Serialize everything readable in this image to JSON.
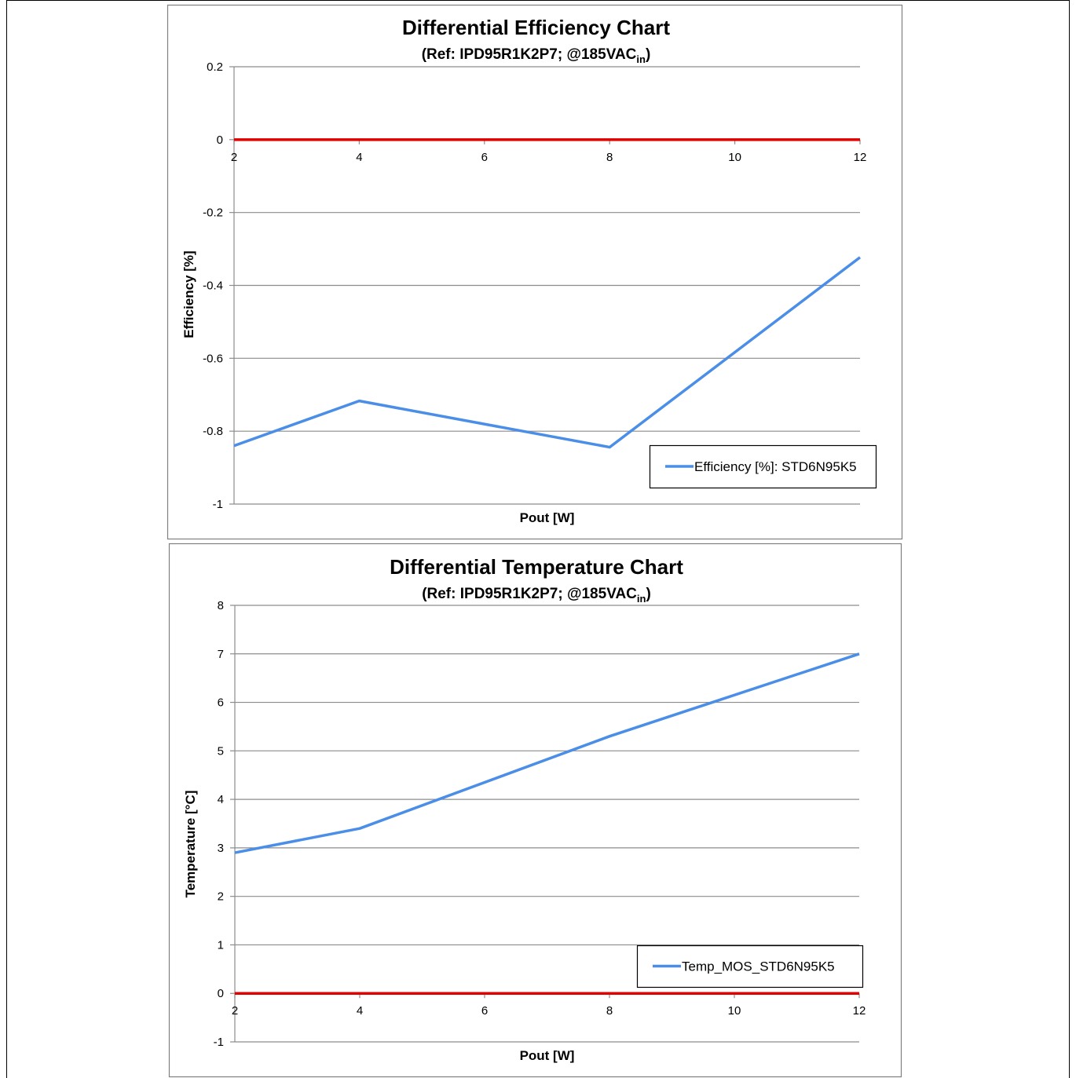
{
  "colors": {
    "series": "#4a8ee8",
    "reference": "#e00000",
    "grid": "#8c8c8c",
    "axis": "#8c8c8c",
    "frame": "#808080"
  },
  "chart_data": [
    {
      "type": "line",
      "title": "Differential Efficiency Chart",
      "subtitle": {
        "prefix": "(Ref: IPD95R1K2P7; @185VAC",
        "sub": "in",
        "suffix": ")"
      },
      "xlabel": "Pout [W]",
      "ylabel": "Efficiency [%]",
      "xlim": [
        2,
        12
      ],
      "ylim": [
        -1,
        0.2
      ],
      "x_ticks": [
        2,
        4,
        6,
        8,
        10,
        12
      ],
      "y_ticks": [
        0.2,
        0,
        -0.2,
        -0.4,
        -0.6,
        -0.8,
        -1
      ],
      "x_axis_at": 0,
      "grid": true,
      "legend_position": "bottom-right",
      "series": [
        {
          "name": "Efficiency [%]: STD6N95K5",
          "color": "#4a8ee8",
          "x": [
            2,
            4,
            8,
            12
          ],
          "values": [
            -0.84,
            -0.717,
            -0.844,
            -0.323
          ]
        },
        {
          "name": "",
          "color": "#e00000",
          "x": [
            2,
            12
          ],
          "values": [
            0,
            0
          ],
          "in_legend": false
        }
      ]
    },
    {
      "type": "line",
      "title": "Differential Temperature Chart",
      "subtitle": {
        "prefix": "(Ref: IPD95R1K2P7; @185VAC",
        "sub": "in",
        "suffix": ")"
      },
      "xlabel": "Pout [W]",
      "ylabel": "Temperature [°C]",
      "xlim": [
        2,
        12
      ],
      "ylim": [
        -1,
        8
      ],
      "x_ticks": [
        2,
        4,
        6,
        8,
        10,
        12
      ],
      "y_ticks": [
        8,
        7,
        6,
        5,
        4,
        3,
        2,
        1,
        0,
        -1
      ],
      "x_axis_at": 0,
      "grid": true,
      "legend_position": "bottom-right",
      "series": [
        {
          "name": "Temp_MOS_STD6N95K5",
          "color": "#4a8ee8",
          "x": [
            2,
            4,
            8,
            12
          ],
          "values": [
            2.9,
            3.4,
            5.3,
            7.0
          ]
        },
        {
          "name": "",
          "color": "#e00000",
          "x": [
            2,
            12
          ],
          "values": [
            0,
            0
          ],
          "in_legend": false
        }
      ]
    }
  ]
}
